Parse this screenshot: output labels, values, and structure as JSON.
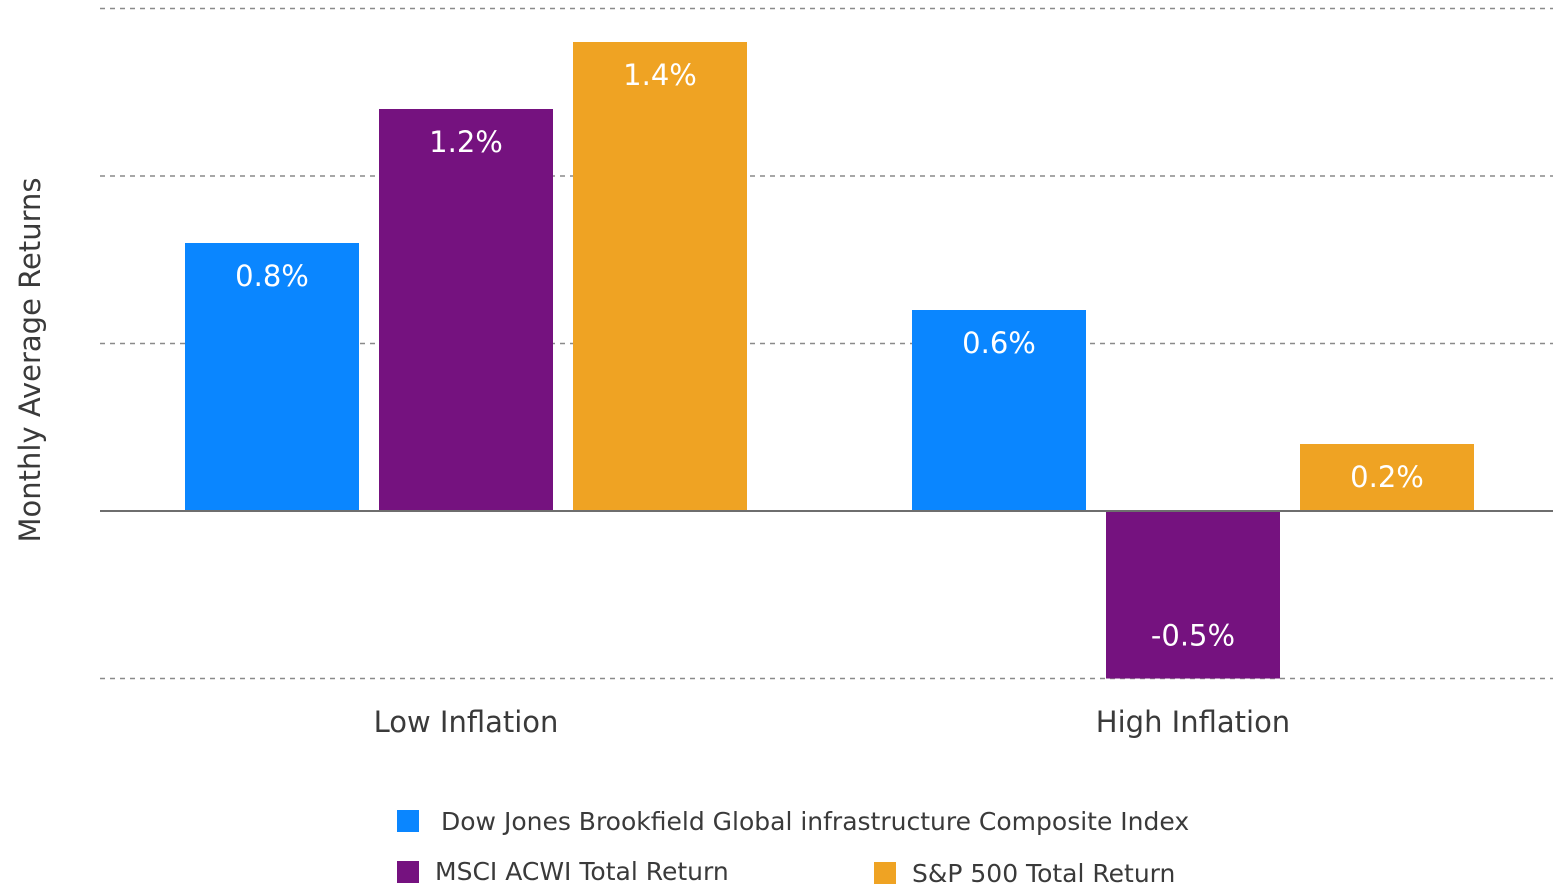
{
  "chart_data": {
    "type": "bar",
    "title": "",
    "xlabel": "",
    "ylabel": "Monthly Average Returns",
    "categories": [
      "Low Inflation",
      "High Inflation"
    ],
    "series": [
      {
        "name": "Dow Jones Brookfield Global infrastructure Composite Index",
        "color": "#0A86FF",
        "values": [
          0.8,
          0.6
        ],
        "labels": [
          "0.8%",
          "0.6%"
        ]
      },
      {
        "name": "MSCI ACWI Total Return",
        "color": "#75127F",
        "values": [
          1.2,
          -0.5
        ],
        "labels": [
          "1.2%",
          "-0.5%"
        ]
      },
      {
        "name": "S&P 500 Total Return",
        "color": "#EFA323",
        "values": [
          1.4,
          0.2
        ],
        "labels": [
          "1.4%",
          "0.2%"
        ]
      }
    ],
    "ylim": [
      -0.5,
      1.5
    ],
    "gridlines": [
      -0.5,
      0.5,
      1.0,
      1.5
    ],
    "grid": true,
    "grid_style": "dashed",
    "legend_position": "bottom"
  }
}
